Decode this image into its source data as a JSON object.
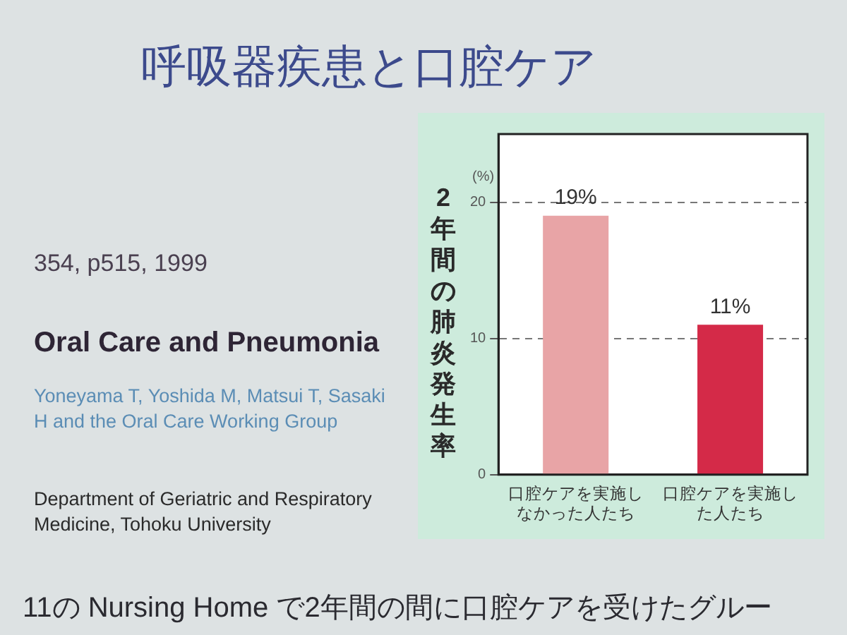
{
  "chart_data": {
    "type": "bar",
    "title": "呼吸器疾患と口腔ケア",
    "subtitle": "Oral Care and Pneumonia",
    "ylabel": "2年間の肺炎発生率",
    "annotations": [
      "(%)",
      "354, p515, 1999",
      "Yoneyama T, Yoshida M, Matsui T, Sasaki H and the Oral Care Working Group",
      "Department of Geriatric and Respiratory Medicine, Tohoku University",
      "11の Nursing Home で2年間の間に口腔ケアを受けたグルー"
    ],
    "categories": [
      "口腔ケアを実施しなかった人たち",
      "口腔ケアを実施した人たち"
    ],
    "values": [
      19,
      11
    ],
    "colors": [
      "#e8a4a6",
      "#d42a48"
    ],
    "value_labels": [
      "19%",
      "11%"
    ],
    "ylim": [
      0,
      25
    ],
    "yticks": [
      0,
      10,
      20
    ],
    "grid": "y"
  }
}
